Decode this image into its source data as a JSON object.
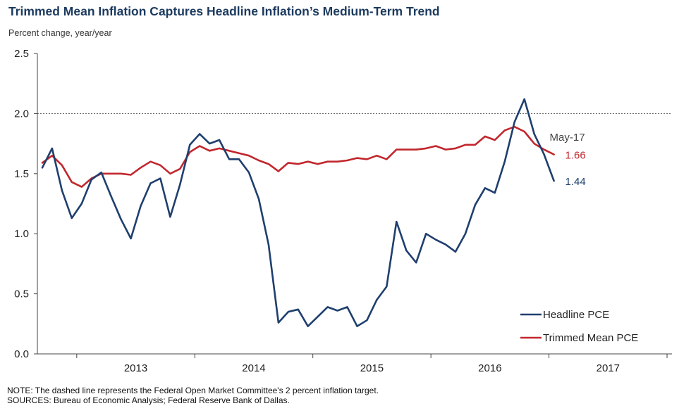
{
  "title": "Trimmed Mean Inflation Captures Headline Inflation’s Medium-Term Trend",
  "unit_label": "Percent change, year/year",
  "notes": {
    "note": "NOTE: The dashed line represents the Federal Open Market Committee's 2 percent inflation target.",
    "sources": "SOURCES: Bureau of Economic Analysis; Federal Reserve Bank of Dallas."
  },
  "chart_data": {
    "type": "line",
    "title": "Trimmed Mean Inflation Captures Headline Inflation’s Medium-Term Trend",
    "ylabel": "Percent change, year/year",
    "ylim": [
      0,
      2.5
    ],
    "yticks": [
      "0.0",
      "0.5",
      "1.0",
      "1.5",
      "2.0",
      "2.5"
    ],
    "x_start": "2012-09",
    "x_end": "2017-05",
    "year_labels": [
      "2013",
      "2014",
      "2015",
      "2016",
      "2017"
    ],
    "target_line": {
      "value": 2.0,
      "style": "dashed"
    },
    "latest_label": "May-17",
    "legend_position": "bottom-right",
    "series": [
      {
        "name": "Headline PCE",
        "color": "#1f3f6e",
        "end_label": "1.44",
        "values": [
          1.55,
          1.71,
          1.36,
          1.13,
          1.25,
          1.45,
          1.51,
          1.31,
          1.12,
          0.96,
          1.23,
          1.42,
          1.46,
          1.14,
          1.41,
          1.74,
          1.83,
          1.75,
          1.78,
          1.62,
          1.62,
          1.51,
          1.29,
          0.91,
          0.26,
          0.35,
          0.37,
          0.23,
          0.31,
          0.39,
          0.36,
          0.39,
          0.23,
          0.28,
          0.45,
          0.56,
          1.1,
          0.86,
          0.76,
          1.0,
          0.95,
          0.91,
          0.85,
          1.0,
          1.24,
          1.38,
          1.34,
          1.6,
          1.93,
          2.12,
          1.83,
          1.66,
          1.44
        ]
      },
      {
        "name": "Trimmed Mean PCE",
        "color": "#c1272d",
        "end_label": "1.66",
        "values": [
          1.59,
          1.65,
          1.57,
          1.43,
          1.39,
          1.46,
          1.5,
          1.5,
          1.5,
          1.49,
          1.55,
          1.6,
          1.57,
          1.5,
          1.54,
          1.68,
          1.73,
          1.69,
          1.71,
          1.69,
          1.67,
          1.65,
          1.61,
          1.58,
          1.52,
          1.59,
          1.58,
          1.6,
          1.58,
          1.6,
          1.6,
          1.61,
          1.63,
          1.62,
          1.65,
          1.62,
          1.7,
          1.7,
          1.7,
          1.71,
          1.73,
          1.7,
          1.71,
          1.74,
          1.74,
          1.81,
          1.78,
          1.86,
          1.89,
          1.85,
          1.75,
          1.7,
          1.66
        ]
      }
    ]
  }
}
